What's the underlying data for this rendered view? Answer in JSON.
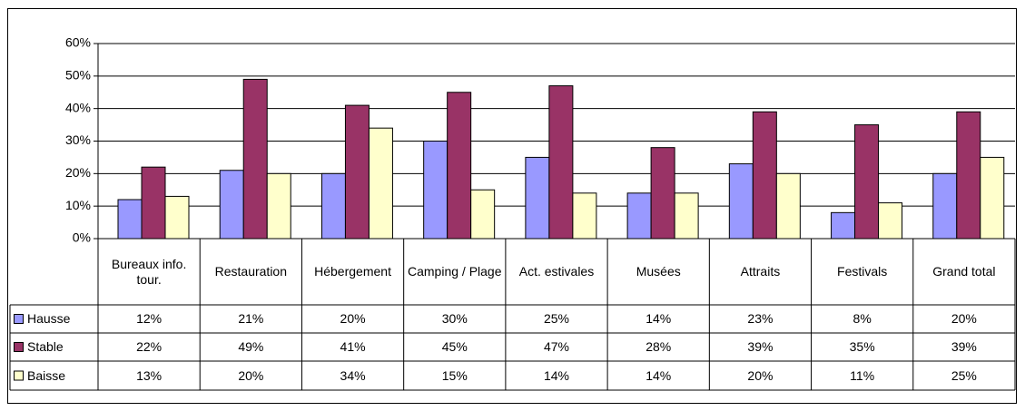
{
  "chart_data": {
    "type": "bar",
    "categories": [
      "Bureaux info. tour.",
      "Restauration",
      "Hébergement",
      "Camping / Plage",
      "Act. estivales",
      "Musées",
      "Attraits",
      "Festivals",
      "Grand total"
    ],
    "series": [
      {
        "name": "Hausse",
        "color": "#9999ff",
        "values": [
          12,
          21,
          20,
          30,
          25,
          14,
          23,
          8,
          20
        ],
        "value_labels": [
          "12%",
          "21%",
          "20%",
          "30%",
          "25%",
          "14%",
          "23%",
          "8%",
          "20%"
        ]
      },
      {
        "name": "Stable",
        "color": "#993366",
        "values": [
          22,
          49,
          41,
          45,
          47,
          28,
          39,
          35,
          39
        ],
        "value_labels": [
          "22%",
          "49%",
          "41%",
          "45%",
          "47%",
          "28%",
          "39%",
          "35%",
          "39%"
        ]
      },
      {
        "name": "Baisse",
        "color": "#ffffcc",
        "values": [
          13,
          20,
          34,
          15,
          14,
          14,
          20,
          11,
          25
        ],
        "value_labels": [
          "13%",
          "20%",
          "34%",
          "15%",
          "14%",
          "14%",
          "20%",
          "11%",
          "25%"
        ]
      }
    ],
    "ylim": [
      0,
      60
    ],
    "yticks": [
      {
        "value": 0,
        "label": "0%"
      },
      {
        "value": 10,
        "label": "10%"
      },
      {
        "value": 20,
        "label": "20%"
      },
      {
        "value": 30,
        "label": "30%"
      },
      {
        "value": 40,
        "label": "40%"
      },
      {
        "value": 50,
        "label": "50%"
      },
      {
        "value": 60,
        "label": "60%"
      }
    ],
    "grid": true
  }
}
